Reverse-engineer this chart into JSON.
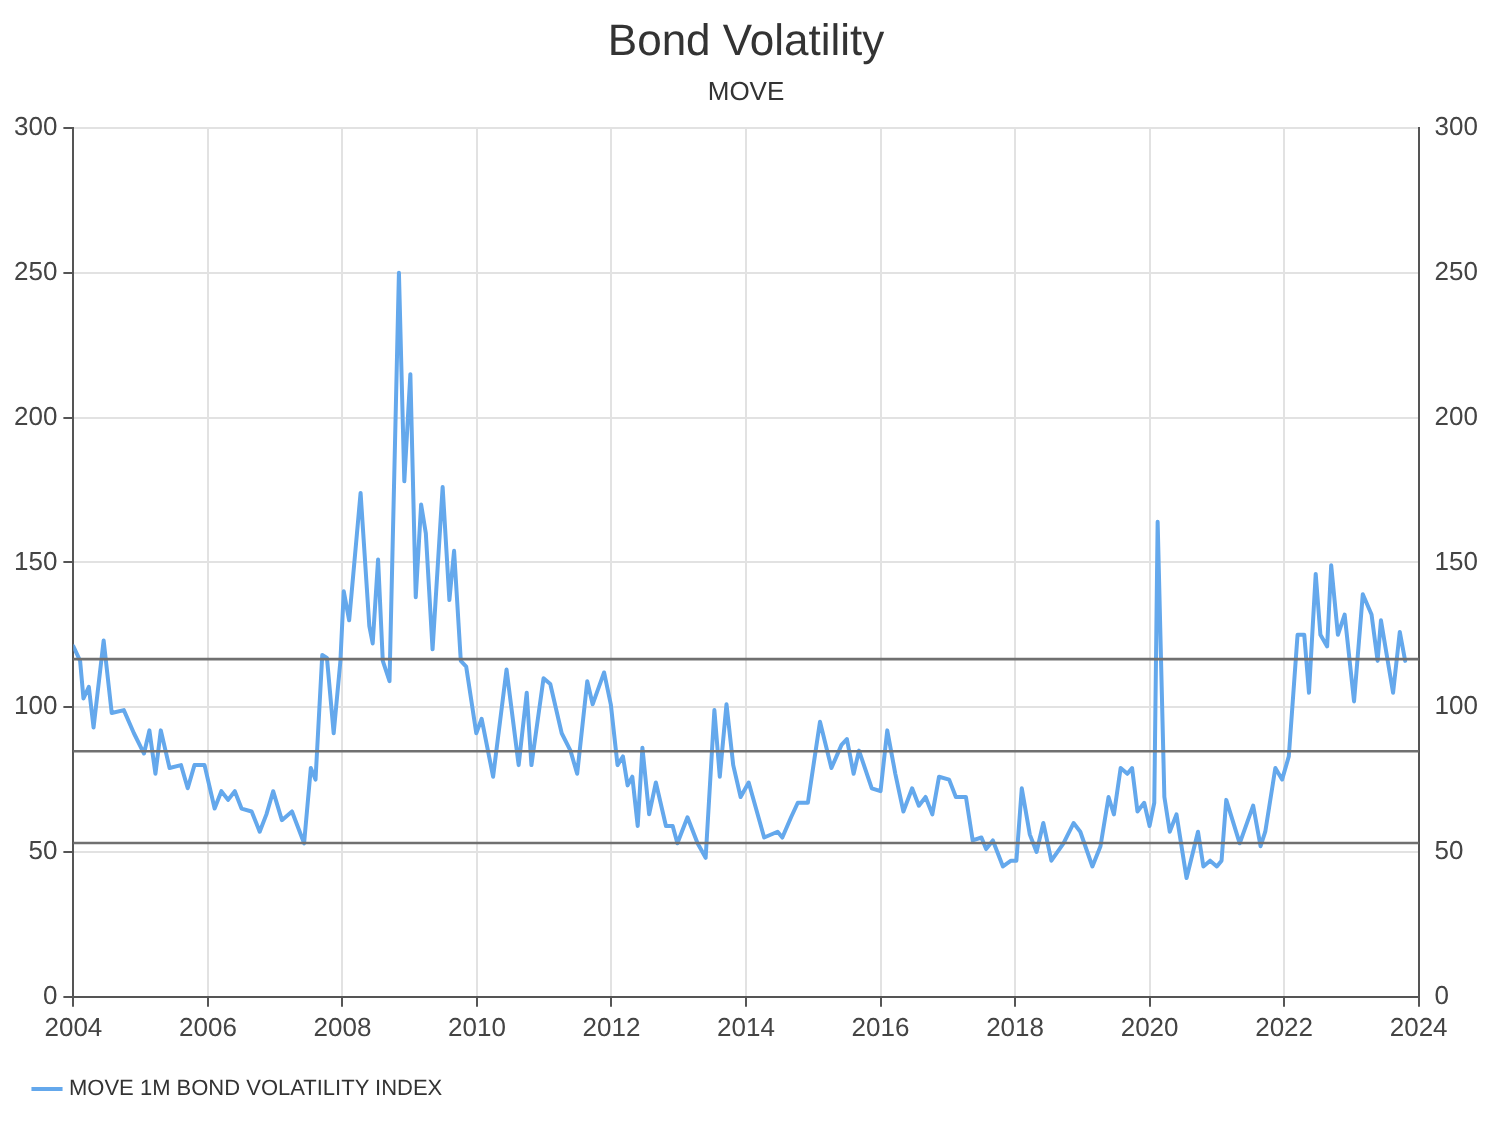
{
  "chart_data": {
    "type": "line",
    "title": "Bond Volatility",
    "subtitle": "MOVE",
    "xlim": [
      2004,
      2024
    ],
    "xticks": [
      2004,
      2006,
      2008,
      2010,
      2012,
      2014,
      2016,
      2018,
      2020,
      2022,
      2024
    ],
    "ylim": [
      0,
      300
    ],
    "yticks": [
      0,
      50,
      100,
      150,
      200,
      250,
      300
    ],
    "y2lim": [
      0,
      300
    ],
    "y2ticks": [
      0,
      50,
      100,
      150,
      200,
      250,
      300
    ],
    "grid": true,
    "legend": "bottom left",
    "marker": "none",
    "line_style": "solid",
    "ref_lines": [
      {
        "axis": "y",
        "value": 116.6,
        "color": "#707070"
      },
      {
        "axis": "y",
        "value": 84.8,
        "color": "#707070"
      },
      {
        "axis": "y",
        "value": 53.1,
        "color": "#707070"
      }
    ],
    "series": [
      {
        "name": "MOVE 1M BOND VOLATILITY INDEX",
        "color": "#64a8ec",
        "x": [
          2004.0,
          2004.1,
          2004.15,
          2004.23,
          2004.3,
          2004.45,
          2004.57,
          2004.75,
          2004.9,
          2005.05,
          2005.13,
          2005.22,
          2005.3,
          2005.43,
          2005.6,
          2005.7,
          2005.8,
          2005.95,
          2006.1,
          2006.2,
          2006.3,
          2006.4,
          2006.5,
          2006.65,
          2006.77,
          2006.87,
          2006.97,
          2007.1,
          2007.25,
          2007.43,
          2007.53,
          2007.6,
          2007.7,
          2007.77,
          2007.87,
          2007.97,
          2008.02,
          2008.1,
          2008.27,
          2008.4,
          2008.45,
          2008.53,
          2008.6,
          2008.7,
          2008.84,
          2008.92,
          2009.01,
          2009.09,
          2009.17,
          2009.24,
          2009.34,
          2009.49,
          2009.59,
          2009.66,
          2009.76,
          2009.84,
          2009.99,
          2010.07,
          2010.24,
          2010.44,
          2010.62,
          2010.74,
          2010.81,
          2010.99,
          2011.09,
          2011.26,
          2011.39,
          2011.49,
          2011.64,
          2011.72,
          2011.89,
          2011.99,
          2012.09,
          2012.17,
          2012.24,
          2012.31,
          2012.39,
          2012.46,
          2012.56,
          2012.66,
          2012.81,
          2012.91,
          2012.98,
          2013.13,
          2013.28,
          2013.4,
          2013.53,
          2013.61,
          2013.71,
          2013.81,
          2013.92,
          2014.04,
          2014.27,
          2014.47,
          2014.54,
          2014.67,
          2014.77,
          2014.92,
          2015.1,
          2015.27,
          2015.42,
          2015.5,
          2015.6,
          2015.68,
          2015.87,
          2016.0,
          2016.1,
          2016.22,
          2016.34,
          2016.47,
          2016.57,
          2016.67,
          2016.77,
          2016.87,
          2017.02,
          2017.12,
          2017.27,
          2017.37,
          2017.5,
          2017.57,
          2017.67,
          2017.82,
          2017.94,
          2018.02,
          2018.1,
          2018.22,
          2018.32,
          2018.42,
          2018.54,
          2018.72,
          2018.87,
          2018.97,
          2019.15,
          2019.27,
          2019.39,
          2019.47,
          2019.57,
          2019.67,
          2019.74,
          2019.82,
          2019.92,
          2020.0,
          2020.07,
          2020.12,
          2020.22,
          2020.3,
          2020.4,
          2020.55,
          2020.72,
          2020.8,
          2020.9,
          2021.0,
          2021.07,
          2021.14,
          2021.34,
          2021.54,
          2021.65,
          2021.72,
          2021.87,
          2021.97,
          2022.07,
          2022.2,
          2022.3,
          2022.37,
          2022.47,
          2022.54,
          2022.64,
          2022.7,
          2022.8,
          2022.9,
          2023.04,
          2023.17,
          2023.3,
          2023.39,
          2023.44,
          2023.62,
          2023.72,
          2023.8
        ],
        "values": [
          121,
          116,
          103,
          107,
          93,
          123,
          98,
          99,
          91,
          84,
          92,
          77,
          92,
          79,
          80,
          72,
          80,
          80,
          65,
          71,
          68,
          71,
          65,
          64,
          57,
          63,
          71,
          61,
          64,
          53,
          79,
          75,
          118,
          117,
          91,
          116,
          140,
          130,
          174,
          128,
          122,
          151,
          116,
          109,
          250,
          178,
          215,
          138,
          170,
          160,
          120,
          176,
          137,
          154,
          116,
          114,
          91,
          96,
          76,
          113,
          80,
          105,
          80,
          110,
          108,
          91,
          85,
          77,
          109,
          101,
          112,
          101,
          80,
          83,
          73,
          76,
          59,
          86,
          63,
          74,
          59,
          59,
          53,
          62,
          53,
          48,
          99,
          76,
          101,
          80,
          69,
          74,
          55,
          57,
          55,
          62,
          67,
          67,
          95,
          79,
          87,
          89,
          77,
          85,
          72,
          71,
          92,
          77,
          64,
          72,
          66,
          69,
          63,
          76,
          75,
          69,
          69,
          54,
          55,
          51,
          54,
          45,
          47,
          47,
          72,
          56,
          50,
          60,
          47,
          53,
          60,
          57,
          45,
          52,
          69,
          63,
          79,
          77,
          79,
          64,
          67,
          59,
          67,
          164,
          69,
          57,
          63,
          41,
          57,
          45,
          47,
          45,
          47,
          68,
          53,
          66,
          52,
          57,
          79,
          75,
          83,
          125,
          125,
          105,
          146,
          125,
          121,
          149,
          125,
          132,
          102,
          139,
          132,
          116,
          130,
          105,
          126,
          116
        ]
      }
    ]
  }
}
